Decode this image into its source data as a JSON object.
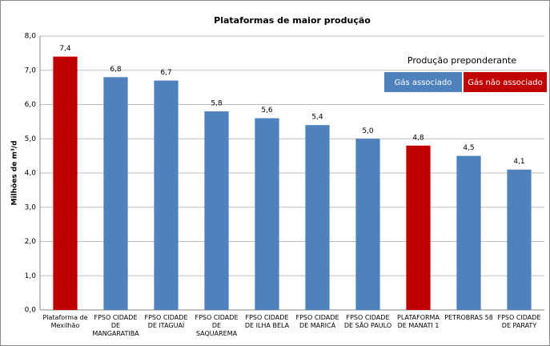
{
  "chart_data": {
    "type": "bar",
    "title": "Plataformas de maior produção",
    "y_label": "Milhões de m³/d",
    "categories": [
      "Plataforma de Mexilhão",
      "FPSO CIDADE DE MANGARATIBA",
      "FPSO CIDADE DE ITAGUAÍ",
      "FPSO CIDADE DE SAQUAREMA",
      "FPSO CIDADE DE ILHA BELA",
      "FPSO CIDADE DE MARICÁ",
      "FPSO CIDADE DE SÃO PAULO",
      "PLATAFORMA DE MANATI 1",
      "PETROBRAS 58",
      "FPSO CIDADE DE PARATY"
    ],
    "values": [
      7.4,
      6.8,
      6.7,
      5.8,
      5.6,
      5.4,
      5.0,
      4.8,
      4.5,
      4.1
    ],
    "value_labels": [
      "7,4",
      "6,8",
      "6,7",
      "5,8",
      "5,6",
      "5,4",
      "5,0",
      "4,8",
      "4,5",
      "4,1"
    ],
    "colors": [
      "#c00000",
      "#4f81bd",
      "#4f81bd",
      "#4f81bd",
      "#4f81bd",
      "#4f81bd",
      "#4f81bd",
      "#c00000",
      "#4f81bd",
      "#4f81bd"
    ],
    "ylim": [
      0,
      8
    ],
    "yticks": [
      {
        "value": 0,
        "label": "0,0"
      },
      {
        "value": 1,
        "label": "1,0"
      },
      {
        "value": 2,
        "label": "2,0"
      },
      {
        "value": 3,
        "label": "3,0"
      },
      {
        "value": 4,
        "label": "4,0"
      },
      {
        "value": 5,
        "label": "5,0"
      },
      {
        "value": 6,
        "label": "6,0"
      },
      {
        "value": 7,
        "label": "7,0"
      },
      {
        "value": 8,
        "label": "8,0"
      }
    ],
    "grid": true,
    "legend": {
      "title": "Produção preponderante",
      "items": [
        {
          "label": "Gás associado",
          "color": "#4f81bd"
        },
        {
          "label": "Gás não associado",
          "color": "#c00000"
        }
      ]
    }
  }
}
